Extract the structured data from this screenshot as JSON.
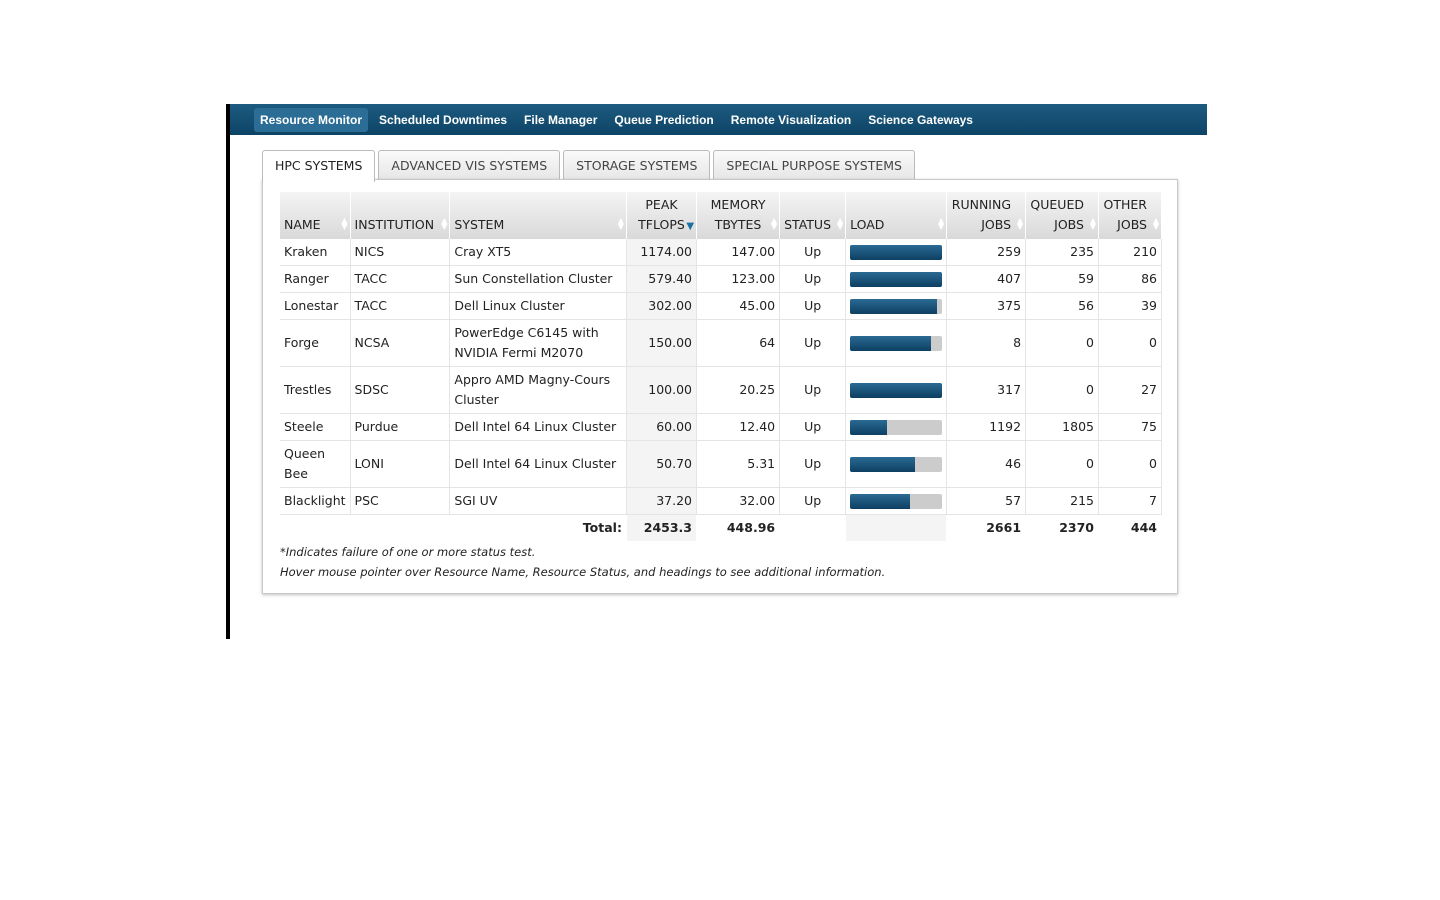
{
  "nav": {
    "items": [
      {
        "label": "Resource Monitor",
        "active": true
      },
      {
        "label": "Scheduled Downtimes",
        "active": false
      },
      {
        "label": "File Manager",
        "active": false
      },
      {
        "label": "Queue Prediction",
        "active": false
      },
      {
        "label": "Remote Visualization",
        "active": false
      },
      {
        "label": "Science Gateways",
        "active": false
      }
    ]
  },
  "tabs": [
    {
      "label": "HPC SYSTEMS",
      "active": true
    },
    {
      "label": "ADVANCED VIS SYSTEMS",
      "active": false
    },
    {
      "label": "STORAGE SYSTEMS",
      "active": false
    },
    {
      "label": "SPECIAL PURPOSE SYSTEMS",
      "active": false
    }
  ],
  "table": {
    "headers": {
      "name": "NAME",
      "institution": "INSTITUTION",
      "system": "SYSTEM",
      "tflops_1": "PEAK",
      "tflops_2": "TFLOPS",
      "memory_1": "MEMORY",
      "memory_2": "TBYTES",
      "status": "STATUS",
      "load": "LOAD",
      "running_1": "RUNNING",
      "running_2": "JOBS",
      "queued_1": "QUEUED",
      "queued_2": "JOBS",
      "other_1": "OTHER",
      "other_2": "JOBS"
    },
    "sort_icon": "sort-both-icon",
    "sort_active_icon": "sort-desc-icon",
    "rows": [
      {
        "name": "Kraken",
        "institution": "NICS",
        "system": "Cray XT5",
        "tflops": "1174.00",
        "memory": "147.00",
        "status": "Up",
        "load": 1.0,
        "running": "259",
        "queued": "235",
        "other": "210"
      },
      {
        "name": "Ranger",
        "institution": "TACC",
        "system": "Sun Constellation Cluster",
        "tflops": "579.40",
        "memory": "123.00",
        "status": "Up",
        "load": 1.0,
        "running": "407",
        "queued": "59",
        "other": "86"
      },
      {
        "name": "Lonestar",
        "institution": "TACC",
        "system": "Dell Linux Cluster",
        "tflops": "302.00",
        "memory": "45.00",
        "status": "Up",
        "load": 0.94,
        "running": "375",
        "queued": "56",
        "other": "39"
      },
      {
        "name": "Forge",
        "institution": "NCSA",
        "system": "PowerEdge C6145 with NVIDIA Fermi M2070",
        "tflops": "150.00",
        "memory": "64",
        "status": "Up",
        "load": 0.88,
        "running": "8",
        "queued": "0",
        "other": "0"
      },
      {
        "name": "Trestles",
        "institution": "SDSC",
        "system": "Appro AMD Magny-Cours Cluster",
        "tflops": "100.00",
        "memory": "20.25",
        "status": "Up",
        "load": 1.0,
        "running": "317",
        "queued": "0",
        "other": "27"
      },
      {
        "name": "Steele",
        "institution": "Purdue",
        "system": "Dell Intel 64 Linux Cluster",
        "tflops": "60.00",
        "memory": "12.40",
        "status": "Up",
        "load": 0.4,
        "running": "1192",
        "queued": "1805",
        "other": "75"
      },
      {
        "name": "Queen Bee",
        "institution": "LONI",
        "system": "Dell Intel 64 Linux Cluster",
        "tflops": "50.70",
        "memory": "5.31",
        "status": "Up",
        "load": 0.71,
        "running": "46",
        "queued": "0",
        "other": "0"
      },
      {
        "name": "Blacklight",
        "institution": "PSC",
        "system": "SGI UV",
        "tflops": "37.20",
        "memory": "32.00",
        "status": "Up",
        "load": 0.65,
        "running": "57",
        "queued": "215",
        "other": "7"
      }
    ],
    "total": {
      "label": "Total:",
      "tflops": "2453.3",
      "memory": "448.96",
      "running": "2661",
      "queued": "2370",
      "other": "444"
    }
  },
  "notes": {
    "failure": "*Indicates failure of one or more status test.",
    "hover": "Hover mouse pointer over Resource Name, Resource Status, and headings to see additional information."
  },
  "colors": {
    "nav_bg": "#0d4466",
    "load_fill": "#0d3f62",
    "load_track": "#cccccc"
  }
}
